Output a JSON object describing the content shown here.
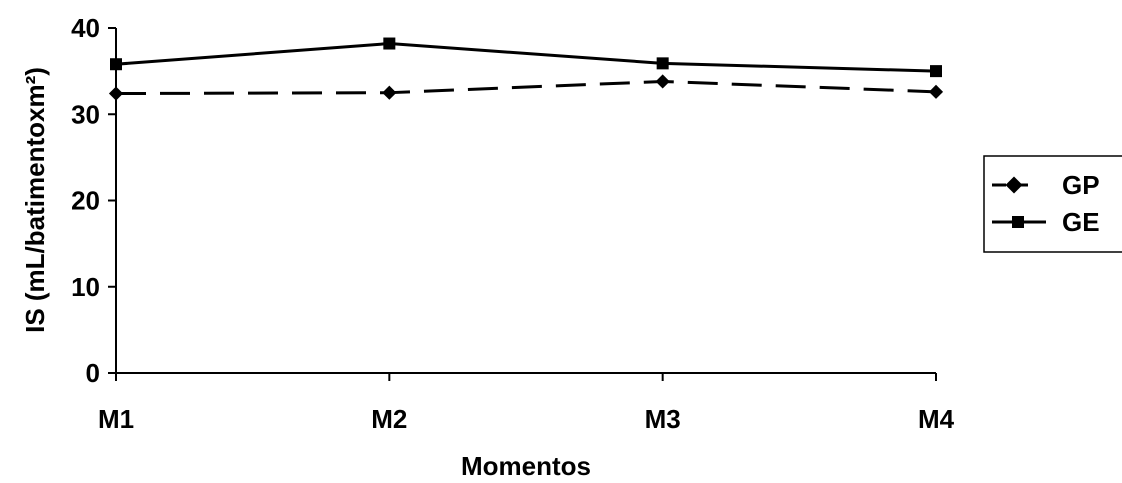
{
  "chart_data": {
    "type": "line",
    "title": "",
    "xlabel": "Momentos",
    "ylabel": "IS (mL/batimentoxm²)",
    "categories": [
      "M1",
      "M2",
      "M3",
      "M4"
    ],
    "ylim": [
      0,
      40
    ],
    "yticks": [
      0,
      10,
      20,
      30,
      40
    ],
    "grid": false,
    "legend_position": "right",
    "series": [
      {
        "name": "GP",
        "values": [
          32.4,
          32.5,
          33.8,
          32.6
        ],
        "line_style": "dashed",
        "marker": "diamond",
        "color": "#000000"
      },
      {
        "name": "GE",
        "values": [
          35.8,
          38.2,
          35.9,
          35.0
        ],
        "line_style": "solid",
        "marker": "square",
        "color": "#000000"
      }
    ]
  }
}
